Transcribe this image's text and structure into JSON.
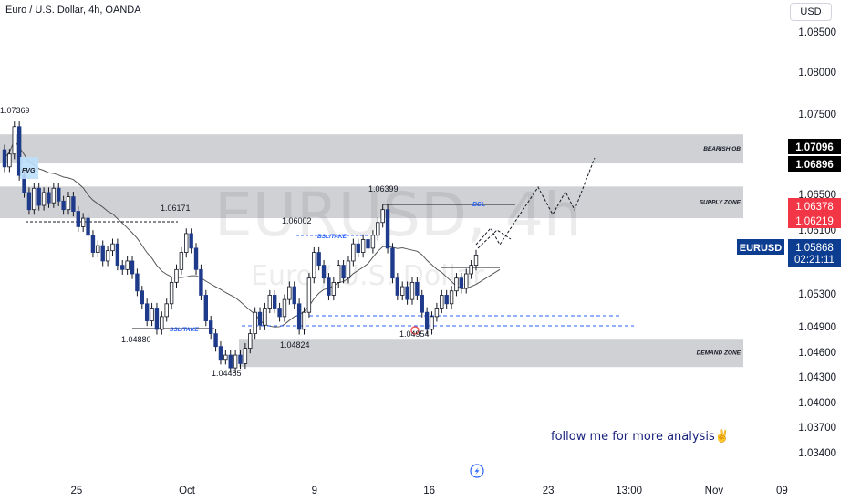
{
  "header": {
    "title": "Euro / U.S. Dollar, 4h, OANDA"
  },
  "currency_button": {
    "label": "USD"
  },
  "watermark": {
    "symbol": "EURUSD, 4h",
    "name": "Euro / U.S. Dollar"
  },
  "footer": {
    "follow_text": "follow me for more analysis✌️"
  },
  "colors": {
    "bull": "#26a69a",
    "bear": "#ef5350",
    "zone": "#c8c9cd",
    "price_badge": "#0d3d91",
    "red_badge": "#f23645"
  },
  "chart_data": {
    "type": "candlestick",
    "symbol": "EURUSD",
    "interval": "4h",
    "ylim": [
      1.0325,
      1.0885
    ],
    "y_ticks": [
      "1.08500",
      "1.08000",
      "1.07500",
      "1.06500",
      "1.06100",
      "1.05300",
      "1.04900",
      "1.04600",
      "1.04300",
      "1.04000",
      "1.03700",
      "1.03400"
    ],
    "x_ticks": [
      {
        "label": "25",
        "x": 0.09
      },
      {
        "label": "Oct",
        "x": 0.22
      },
      {
        "label": "9",
        "x": 0.37
      },
      {
        "label": "16",
        "x": 0.505
      },
      {
        "label": "23",
        "x": 0.645
      },
      {
        "label": "13:00",
        "x": 0.74
      },
      {
        "label": "Nov",
        "x": 0.84
      },
      {
        "label": "09",
        "x": 0.92
      }
    ],
    "price_labels": [
      {
        "value": "1.07096",
        "style": "black"
      },
      {
        "value": "1.06896",
        "style": "black"
      },
      {
        "value": "1.06378",
        "style": "red"
      },
      {
        "value": "1.06219",
        "style": "red"
      },
      {
        "symbol": "EURUSD",
        "value": "1.05868",
        "countdown": "02:21:11",
        "style": "blue"
      }
    ],
    "zones": [
      {
        "name": "BEARISH OB",
        "top": 1.0728,
        "bottom": 1.0694
      },
      {
        "name": "SUPPLY ZONE",
        "top": 1.0667,
        "bottom": 1.063
      },
      {
        "name": "DEMAND ZONE",
        "top": 1.0489,
        "bottom": 1.0456
      }
    ],
    "annotations": [
      {
        "text": "FVG"
      },
      {
        "text": "BSL"
      },
      {
        "text": "BSL/TAKE"
      },
      {
        "text": "SSL/TAKE"
      }
    ],
    "level_labels": [
      "1.07369",
      "1.06171",
      "1.04880",
      "1.04485",
      "1.06002",
      "1.04824",
      "1.06399",
      "1.04954"
    ],
    "candles_open_close": [
      [
        1.071,
        1.069
      ],
      [
        1.069,
        1.0705
      ],
      [
        1.0705,
        1.0737
      ],
      [
        1.0737,
        1.068
      ],
      [
        1.068,
        1.066
      ],
      [
        1.066,
        1.064
      ],
      [
        1.064,
        1.0665
      ],
      [
        1.0665,
        1.0645
      ],
      [
        1.0645,
        1.066
      ],
      [
        1.066,
        1.0648
      ],
      [
        1.0648,
        1.0665
      ],
      [
        1.0665,
        1.065
      ],
      [
        1.065,
        1.064
      ],
      [
        1.064,
        1.0655
      ],
      [
        1.0655,
        1.0638
      ],
      [
        1.0638,
        1.062
      ],
      [
        1.062,
        1.063
      ],
      [
        1.063,
        1.061
      ],
      [
        1.061,
        1.059
      ],
      [
        1.059,
        1.0598
      ],
      [
        1.0598,
        1.058
      ],
      [
        1.058,
        1.0592
      ],
      [
        1.0592,
        1.06
      ],
      [
        1.06,
        1.0575
      ],
      [
        1.0575,
        1.057
      ],
      [
        1.057,
        1.058
      ],
      [
        1.058,
        1.0565
      ],
      [
        1.0565,
        1.0545
      ],
      [
        1.0545,
        1.053
      ],
      [
        1.053,
        1.051
      ],
      [
        1.051,
        1.0525
      ],
      [
        1.0525,
        1.05
      ],
      [
        1.05,
        1.0515
      ],
      [
        1.0515,
        1.053
      ],
      [
        1.053,
        1.0555
      ],
      [
        1.0555,
        1.057
      ],
      [
        1.057,
        1.059
      ],
      [
        1.059,
        1.0612
      ],
      [
        1.0612,
        1.0595
      ],
      [
        1.0595,
        1.057
      ],
      [
        1.057,
        1.054
      ],
      [
        1.054,
        1.051
      ],
      [
        1.051,
        1.0495
      ],
      [
        1.0495,
        1.048
      ],
      [
        1.048,
        1.0465
      ],
      [
        1.0465,
        1.047
      ],
      [
        1.047,
        1.0455
      ],
      [
        1.0455,
        1.047
      ],
      [
        1.047,
        1.046
      ],
      [
        1.046,
        1.0478
      ],
      [
        1.0478,
        1.0495
      ],
      [
        1.0495,
        1.052
      ],
      [
        1.052,
        1.0505
      ],
      [
        1.0505,
        1.0525
      ],
      [
        1.0525,
        1.054
      ],
      [
        1.054,
        1.0525
      ],
      [
        1.0525,
        1.0515
      ],
      [
        1.0515,
        1.0535
      ],
      [
        1.0535,
        1.055
      ],
      [
        1.055,
        1.053
      ],
      [
        1.053,
        1.05
      ],
      [
        1.05,
        1.052
      ],
      [
        1.052,
        1.056
      ],
      [
        1.056,
        1.059
      ],
      [
        1.059,
        1.0575
      ],
      [
        1.0575,
        1.056
      ],
      [
        1.056,
        1.054
      ],
      [
        1.054,
        1.0555
      ],
      [
        1.0555,
        1.0575
      ],
      [
        1.0575,
        1.056
      ],
      [
        1.056,
        1.058
      ],
      [
        1.058,
        1.06
      ],
      [
        1.06,
        1.059
      ],
      [
        1.059,
        1.0605
      ],
      [
        1.0605,
        1.0595
      ],
      [
        1.0595,
        1.061
      ],
      [
        1.061,
        1.0625
      ],
      [
        1.0625,
        1.064
      ],
      [
        1.064,
        1.0595
      ],
      [
        1.0595,
        1.056
      ],
      [
        1.056,
        1.054
      ],
      [
        1.054,
        1.055
      ],
      [
        1.055,
        1.0535
      ],
      [
        1.0535,
        1.0555
      ],
      [
        1.0555,
        1.054
      ],
      [
        1.054,
        1.052
      ],
      [
        1.052,
        1.05
      ],
      [
        1.05,
        1.0515
      ],
      [
        1.0515,
        1.0525
      ],
      [
        1.0525,
        1.054
      ],
      [
        1.054,
        1.053
      ],
      [
        1.053,
        1.0545
      ],
      [
        1.0545,
        1.056
      ],
      [
        1.056,
        1.0548
      ],
      [
        1.0548,
        1.0565
      ],
      [
        1.0565,
        1.0575
      ],
      [
        1.0575,
        1.0587
      ]
    ]
  }
}
